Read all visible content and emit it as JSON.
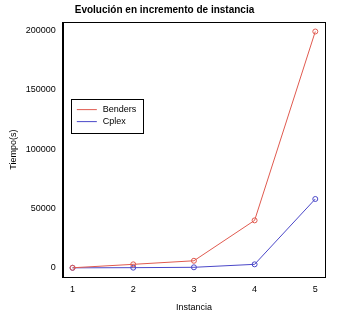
{
  "chart_data": {
    "type": "line",
    "title": "Evolución en incremento de instancia",
    "x_label": "Instancia",
    "y_label": "Tiempo(s)",
    "x": [
      1,
      2,
      3,
      4,
      5
    ],
    "series": [
      {
        "name": "Benders",
        "color": "#e05a4f",
        "values": [
          100,
          3000,
          6000,
          40000,
          199000
        ]
      },
      {
        "name": "Cplex",
        "color": "#4a47c8",
        "values": [
          50,
          200,
          500,
          3000,
          58000
        ]
      }
    ],
    "xlim": [
      0.84,
      5.16
    ],
    "xticks": [
      1,
      2,
      3,
      4,
      5
    ],
    "ylim": [
      -8000,
      207000
    ],
    "yticks": [
      0,
      50000,
      100000,
      150000,
      200000
    ],
    "grid": false,
    "legend": "left",
    "marker": "circle"
  }
}
